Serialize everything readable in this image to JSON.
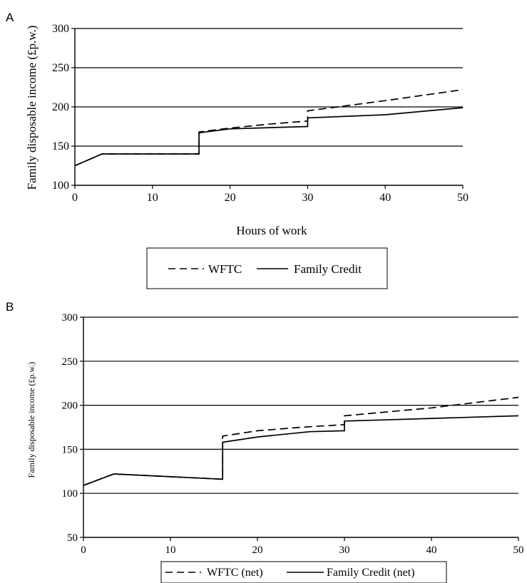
{
  "chart_data": [
    {
      "panel": "A",
      "type": "line",
      "title": "",
      "xlabel": "Hours of work",
      "ylabel": "Family disposable income (£p.w.)",
      "xlim": [
        0,
        50
      ],
      "ylim": [
        100,
        300
      ],
      "x_ticks": [
        0,
        10,
        20,
        30,
        40,
        50
      ],
      "y_ticks": [
        100,
        150,
        200,
        250,
        300
      ],
      "grid": "horizontal",
      "legend_position": "bottom",
      "series": [
        {
          "name": "WFTC",
          "style": "dashed",
          "points": [
            [
              0,
              125
            ],
            [
              3.5,
              140
            ],
            [
              16,
              140
            ],
            [
              16,
              168
            ],
            [
              20,
              173
            ],
            [
              25,
              178
            ],
            [
              30,
              182
            ],
            [
              30,
              195
            ],
            [
              40,
              208
            ],
            [
              50,
              222
            ]
          ]
        },
        {
          "name": "Family Credit",
          "style": "solid",
          "points": [
            [
              0,
              125
            ],
            [
              3.5,
              140
            ],
            [
              16,
              140
            ],
            [
              16,
              167
            ],
            [
              20,
              172
            ],
            [
              30,
              175
            ],
            [
              30,
              186
            ],
            [
              40,
              190
            ],
            [
              50,
              199
            ]
          ]
        }
      ]
    },
    {
      "panel": "B",
      "type": "line",
      "title": "",
      "xlabel": "",
      "ylabel": "Family disposable income (£p.w.)",
      "xlim": [
        0,
        50
      ],
      "ylim": [
        50,
        300
      ],
      "x_ticks": [
        0,
        10,
        20,
        30,
        40,
        50
      ],
      "y_ticks": [
        50,
        100,
        150,
        200,
        250,
        300
      ],
      "grid": "horizontal",
      "legend_position": "bottom",
      "series": [
        {
          "name": "WFTC (net)",
          "style": "dashed",
          "points": [
            [
              0,
              109
            ],
            [
              3.5,
              122
            ],
            [
              16,
              116
            ],
            [
              16,
              165
            ],
            [
              20,
              171
            ],
            [
              25,
              175
            ],
            [
              30,
              178
            ],
            [
              30,
              188
            ],
            [
              40,
              197
            ],
            [
              50,
              209
            ]
          ]
        },
        {
          "name": "Family Credit (net)",
          "style": "solid",
          "points": [
            [
              0,
              109
            ],
            [
              3.5,
              122
            ],
            [
              16,
              116
            ],
            [
              16,
              158
            ],
            [
              20,
              164
            ],
            [
              26,
              170
            ],
            [
              30,
              171
            ],
            [
              30,
              182
            ],
            [
              40,
              185
            ],
            [
              50,
              188
            ]
          ]
        }
      ]
    }
  ]
}
